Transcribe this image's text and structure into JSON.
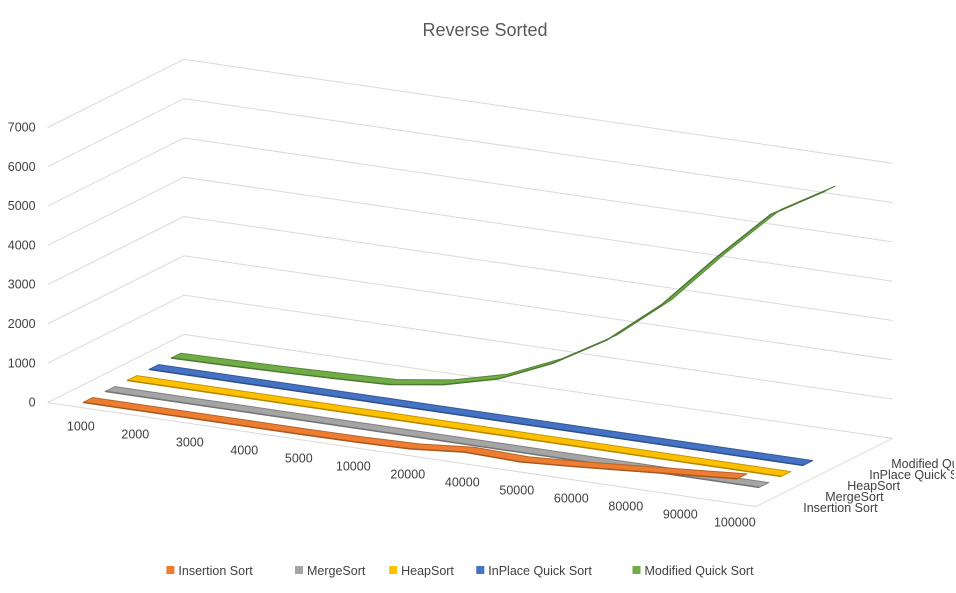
{
  "chart_data": {
    "type": "line",
    "variant": "3d-line",
    "title": "Reverse Sorted",
    "xlabel": "",
    "ylabel": "",
    "categories": [
      "1000",
      "2000",
      "3000",
      "4000",
      "5000",
      "10000",
      "20000",
      "40000",
      "50000",
      "60000",
      "80000",
      "90000",
      "100000"
    ],
    "series_axis_labels": [
      "Insertion Sort",
      "MergeSort",
      "HeapSort",
      "InPlace Quick Sort",
      "Modified Quick Sort"
    ],
    "y_ticks": [
      "0",
      "1000",
      "2000",
      "3000",
      "4000",
      "5000",
      "6000",
      "7000"
    ],
    "ylim": [
      0,
      7000
    ],
    "grid": true,
    "legend_position": "bottom",
    "series": [
      {
        "name": "Insertion Sort",
        "color": "#ED7D31",
        "values": [
          0,
          0,
          0,
          0,
          0,
          10,
          40,
          160,
          120,
          200,
          300,
          400,
          500
        ]
      },
      {
        "name": "MergeSort",
        "color": "#A5A5A5",
        "values": [
          0,
          0,
          0,
          0,
          0,
          0,
          0,
          0,
          0,
          0,
          0,
          0,
          0
        ]
      },
      {
        "name": "HeapSort",
        "color": "#FFC000",
        "values": [
          0,
          0,
          0,
          0,
          0,
          0,
          0,
          0,
          0,
          0,
          0,
          0,
          0
        ]
      },
      {
        "name": "InPlace Quick Sort",
        "color": "#4472C4",
        "values": [
          0,
          0,
          0,
          0,
          0,
          0,
          0,
          0,
          0,
          0,
          0,
          0,
          0
        ]
      },
      {
        "name": "Modified Quick Sort",
        "color": "#70AD47",
        "values": [
          10,
          30,
          60,
          100,
          150,
          350,
          700,
          1300,
          2100,
          3200,
          4600,
          5900,
          6700
        ]
      }
    ]
  }
}
